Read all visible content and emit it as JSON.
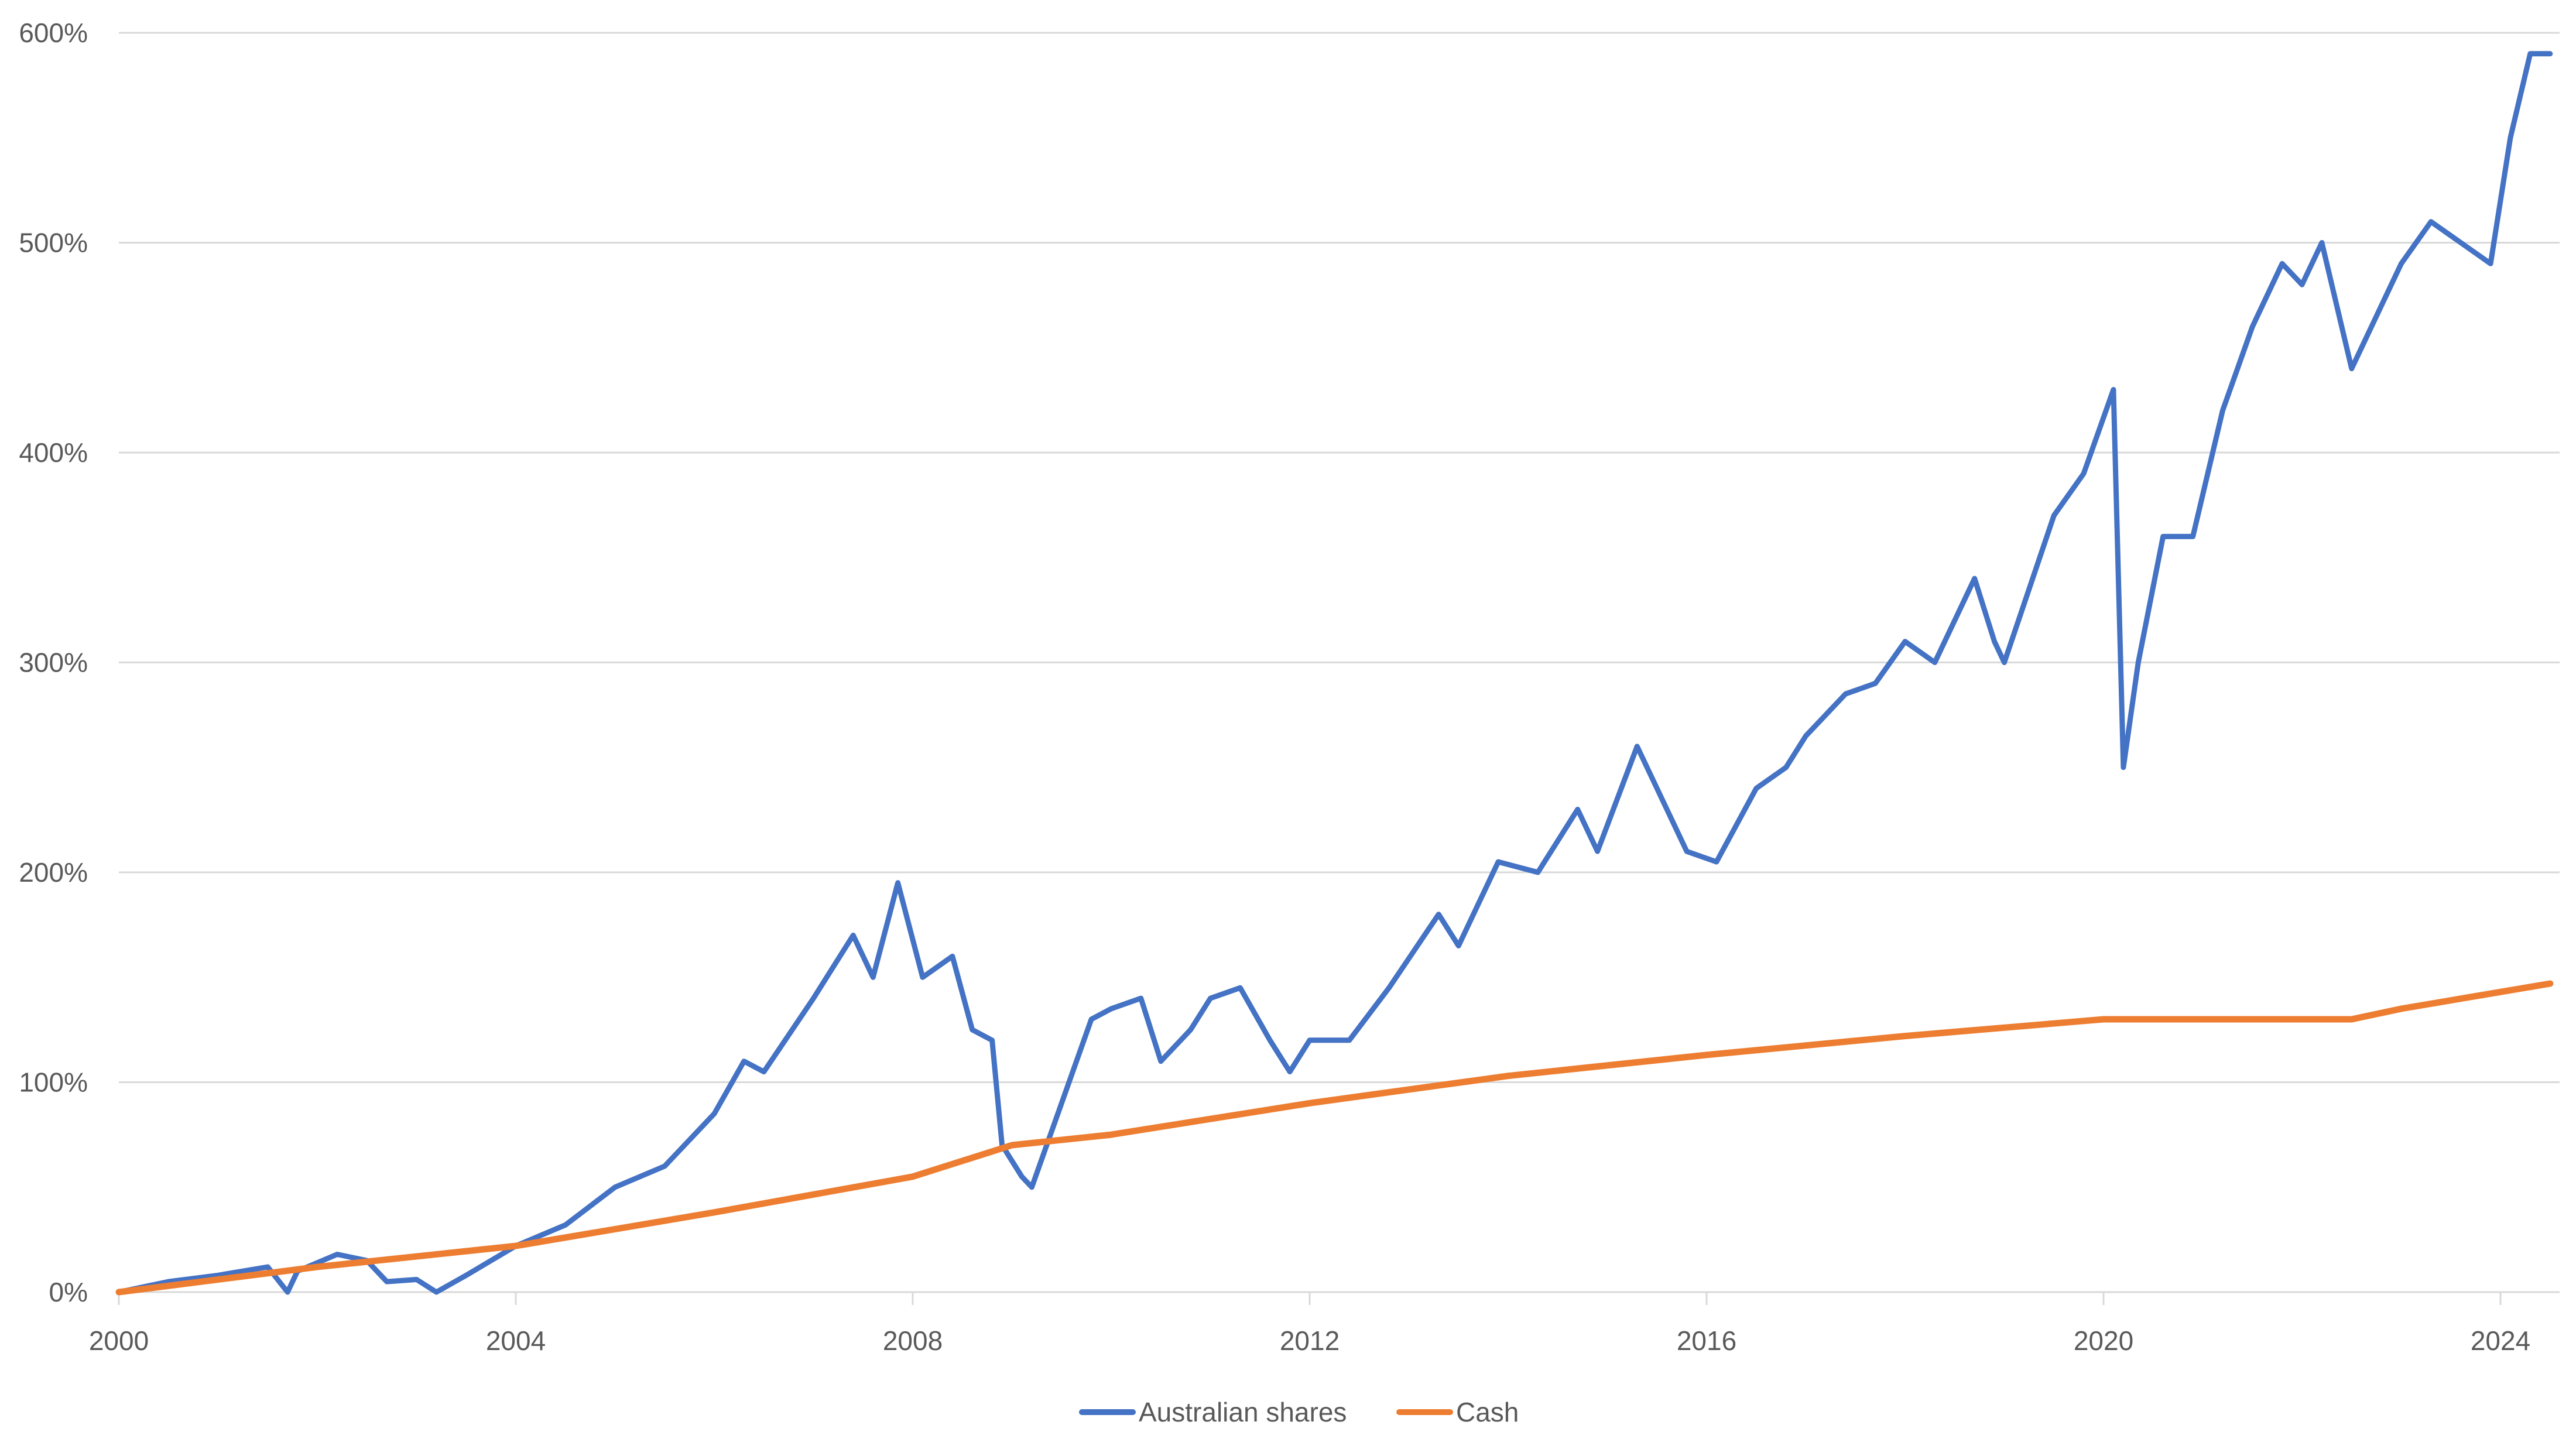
{
  "chart_data": {
    "type": "line",
    "title": "",
    "xlabel": "",
    "ylabel": "",
    "xlim": [
      2000,
      2024.5
    ],
    "ylim": [
      0,
      600
    ],
    "y_unit": "%",
    "grid": "horizontal",
    "legend": "bottom",
    "x_ticks": [
      "2000",
      "2004",
      "2008",
      "2012",
      "2016",
      "2020",
      "2024"
    ],
    "y_ticks": [
      "0%",
      "100%",
      "200%",
      "300%",
      "400%",
      "500%",
      "600%"
    ],
    "series": [
      {
        "name": "Australian shares",
        "color": "#4472C4",
        "x": [
          2000.0,
          2000.5,
          2001.0,
          2001.5,
          2001.7,
          2001.8,
          2002.2,
          2002.5,
          2002.7,
          2003.0,
          2003.2,
          2003.5,
          2004.0,
          2004.5,
          2005.0,
          2005.5,
          2006.0,
          2006.3,
          2006.5,
          2007.0,
          2007.4,
          2007.6,
          2007.85,
          2008.1,
          2008.4,
          2008.6,
          2008.8,
          2008.9,
          2009.1,
          2009.2,
          2009.5,
          2009.8,
          2010.0,
          2010.3,
          2010.5,
          2010.8,
          2011.0,
          2011.3,
          2011.6,
          2011.8,
          2012.0,
          2012.4,
          2012.8,
          2013.3,
          2013.5,
          2013.9,
          2014.3,
          2014.7,
          2014.9,
          2015.3,
          2015.6,
          2015.8,
          2016.1,
          2016.5,
          2016.8,
          2017.0,
          2017.4,
          2017.7,
          2018.0,
          2018.3,
          2018.7,
          2018.9,
          2019.0,
          2019.5,
          2019.8,
          2020.1,
          2020.2,
          2020.35,
          2020.6,
          2020.9,
          2021.2,
          2021.5,
          2021.8,
          2022.0,
          2022.2,
          2022.5,
          2022.8,
          2023.0,
          2023.3,
          2023.6,
          2023.9,
          2024.1,
          2024.3,
          2024.5
        ],
        "y": [
          0,
          5,
          8,
          12,
          0,
          10,
          18,
          15,
          5,
          6,
          0,
          8,
          22,
          32,
          50,
          60,
          85,
          110,
          105,
          140,
          170,
          150,
          195,
          150,
          160,
          125,
          120,
          70,
          55,
          50,
          90,
          130,
          135,
          140,
          110,
          125,
          140,
          145,
          120,
          105,
          120,
          120,
          145,
          180,
          165,
          205,
          200,
          230,
          210,
          260,
          230,
          210,
          205,
          240,
          250,
          265,
          285,
          290,
          310,
          300,
          340,
          310,
          300,
          370,
          390,
          430,
          250,
          300,
          360,
          360,
          420,
          460,
          490,
          480,
          500,
          440,
          470,
          490,
          510,
          500,
          490,
          550,
          590,
          590
        ]
      },
      {
        "name": "Cash",
        "color": "#ED7D31",
        "x": [
          2000,
          2002,
          2004,
          2006,
          2008,
          2009,
          2010,
          2012,
          2014,
          2016,
          2018,
          2020,
          2022,
          2022.5,
          2023,
          2024,
          2024.5
        ],
        "y": [
          0,
          12,
          22,
          38,
          55,
          70,
          75,
          90,
          103,
          113,
          122,
          130,
          130,
          130,
          135,
          143,
          147
        ]
      }
    ]
  }
}
